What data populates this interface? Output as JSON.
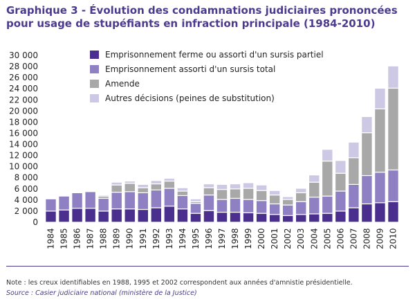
{
  "title": "Graphique 3 - Évolution des condamnations judiciaires prononcées pour usage de stupéfiants en infraction principale (1984-2010)",
  "note": "Note : les creux identifiables en 1988, 1995 et 2002 correspondent aux années d'amnistie présidentielle.",
  "source": "Source : Casier judiciaire national (ministère de la Justice)",
  "colors": {
    "text": "#4b3a8e",
    "emprisonnement_ferme": "#4a2f8f",
    "emprisonnement_sursis": "#8f80c4",
    "amende": "#a8a8a8",
    "autres": "#cdc8e4"
  },
  "chart_data": {
    "type": "bar",
    "stacked": true,
    "xlabel": "",
    "ylabel": "",
    "ylim": [
      0,
      30000
    ],
    "yticks": [
      "0",
      "2 000",
      "4 000",
      "6 000",
      "8 000",
      "10 000",
      "12 000",
      "14 000",
      "16 000",
      "18 000",
      "20 000",
      "22 000",
      "24 000",
      "26 000",
      "28 000",
      "30 000"
    ],
    "grid": false,
    "legend_position": "top-left",
    "categories": [
      "1984",
      "1985",
      "1986",
      "1987",
      "1988",
      "1989",
      "1990",
      "1991",
      "1992",
      "1993",
      "1994",
      "1995",
      "1996",
      "1997",
      "1998",
      "1999",
      "2000",
      "2001",
      "2002",
      "2003",
      "2004",
      "2005",
      "2006",
      "2007",
      "2008",
      "2009",
      "2010"
    ],
    "series": [
      {
        "name": "Emprisonnement ferme ou assorti d'un sursis partiel",
        "values": [
          2000,
          2200,
          2500,
          2500,
          2000,
          2400,
          2400,
          2300,
          2600,
          2900,
          2400,
          1600,
          2100,
          1800,
          1800,
          1700,
          1600,
          1400,
          1200,
          1400,
          1500,
          1600,
          2000,
          2600,
          3300,
          3500,
          3700
        ]
      },
      {
        "name": "Emprisonnement assorti d'un sursis total",
        "values": [
          2200,
          2500,
          2800,
          3000,
          2300,
          3000,
          3100,
          3000,
          3200,
          3200,
          2400,
          1800,
          2800,
          2300,
          2500,
          2400,
          2300,
          1900,
          1900,
          2300,
          3000,
          3100,
          3600,
          4200,
          5100,
          5500,
          5700
        ]
      },
      {
        "name": "Amende",
        "values": [
          0,
          0,
          0,
          0,
          400,
          1300,
          1500,
          900,
          1100,
          1300,
          800,
          300,
          1300,
          1800,
          1700,
          2000,
          1800,
          1600,
          1000,
          1600,
          2700,
          6300,
          3200,
          4800,
          7700,
          11400,
          14700
        ]
      },
      {
        "name": "Autres décisions (peines de substitution)",
        "values": [
          0,
          0,
          0,
          0,
          200,
          500,
          400,
          600,
          600,
          500,
          600,
          500,
          700,
          900,
          900,
          1000,
          1000,
          800,
          500,
          800,
          1300,
          2100,
          2300,
          2800,
          2900,
          3700,
          4000
        ]
      }
    ]
  }
}
